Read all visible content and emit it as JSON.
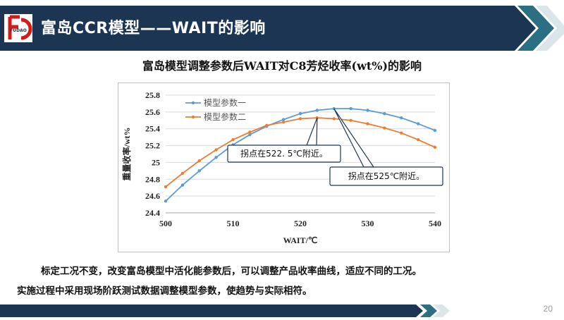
{
  "header": {
    "title": "富岛CCR模型——WAIT的影响",
    "logo_text": "FUDAO",
    "colors": {
      "dark_navy": "#1c3553",
      "teal": "#2b6f82",
      "light": "#dbe6ea",
      "logo_red": "#d21b1b"
    }
  },
  "subtitle": "富岛模型调整参数后WAIT对C8芳烃收率(wt%)的影响",
  "chart_data": {
    "type": "line",
    "xlabel": "WAIT/℃",
    "ylabel": "重量收率/wt%",
    "xlim": [
      500,
      540
    ],
    "ylim": [
      24.4,
      25.8
    ],
    "x_ticks": [
      500,
      510,
      520,
      530,
      540
    ],
    "y_ticks": [
      24.4,
      24.6,
      24.8,
      25,
      25.2,
      25.4,
      25.6,
      25.8
    ],
    "y_tick_labels": [
      "24.4",
      "24.6",
      "24.8",
      "25",
      "25.2",
      "25.4",
      "25.6",
      "25.8"
    ],
    "grid": true,
    "legend_position": "top-left",
    "series": [
      {
        "name": "模型参数一",
        "color": "#5b9bd5",
        "x": [
          500,
          502.5,
          505,
          507.5,
          510,
          512.5,
          515,
          517.5,
          520,
          522.5,
          525,
          527.5,
          530,
          532.5,
          535,
          537.5,
          540
        ],
        "y": [
          24.54,
          24.73,
          24.9,
          25.06,
          25.21,
          25.33,
          25.43,
          25.51,
          25.58,
          25.62,
          25.64,
          25.64,
          25.62,
          25.58,
          25.53,
          25.46,
          25.38
        ]
      },
      {
        "name": "模型参数二",
        "color": "#ed7d31",
        "x": [
          500,
          502.5,
          505,
          507.5,
          510,
          512.5,
          515,
          517.5,
          520,
          522.5,
          525,
          527.5,
          530,
          532.5,
          535,
          537.5,
          540
        ],
        "y": [
          24.71,
          24.87,
          25.02,
          25.15,
          25.27,
          25.36,
          25.44,
          25.48,
          25.52,
          25.53,
          25.52,
          25.5,
          25.46,
          25.41,
          25.35,
          25.27,
          25.18
        ]
      }
    ],
    "annotations": [
      {
        "text": "拐点在522. 5℃附近。",
        "x": 522.5,
        "series": 1
      },
      {
        "text": "拐点在525℃附近。",
        "x": 525,
        "series": 0
      }
    ]
  },
  "body_text": [
    "标定工况不变，改变富岛模型中活化能参数后，可以调整产品收率曲线，适应不同的工况。",
    "实施过程中采用现场阶跃测试数据调整模型参数，使趋势与实际相符。"
  ],
  "page_number": "20"
}
